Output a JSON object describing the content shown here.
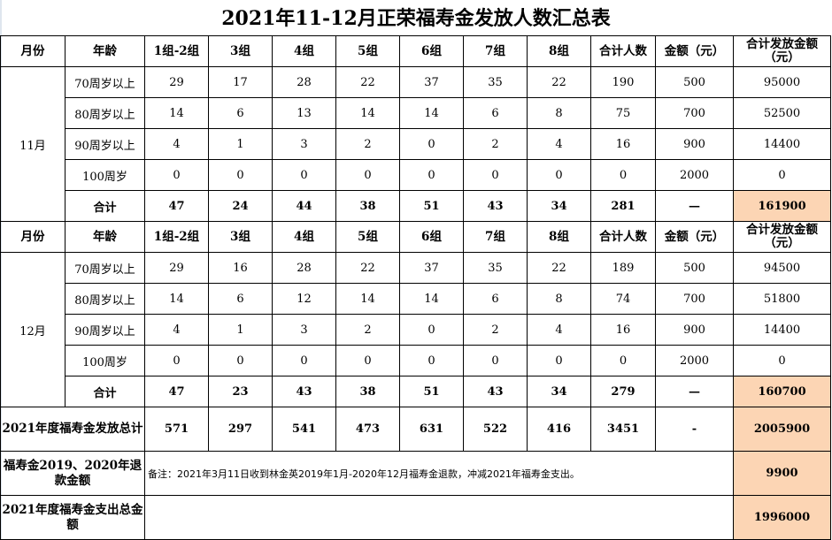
{
  "title": "2021年11-12月正荣福寿金发放人数汇总表",
  "headers": [
    "月份",
    "年龄",
    "1组-2组",
    "3组",
    "4组",
    "5组",
    "6组",
    "7组",
    "8组",
    "合计人数",
    "金额（元）",
    "合计发放金额（元）"
  ],
  "months": [
    {
      "month": "11月",
      "rows": [
        {
          "age": "70周岁以上",
          "values": [
            "29",
            "17",
            "28",
            "22",
            "37",
            "35",
            "22",
            "190",
            "500",
            "95000"
          ]
        },
        {
          "age": "80周岁以上",
          "values": [
            "14",
            "6",
            "13",
            "14",
            "14",
            "6",
            "8",
            "75",
            "700",
            "52500"
          ]
        },
        {
          "age": "90周岁以上",
          "values": [
            "4",
            "1",
            "3",
            "2",
            "0",
            "2",
            "4",
            "16",
            "900",
            "14400"
          ]
        },
        {
          "age": "100周岁",
          "values": [
            "0",
            "0",
            "0",
            "0",
            "0",
            "0",
            "0",
            "0",
            "2000",
            "0"
          ]
        }
      ],
      "total": {
        "label": "合计",
        "values": [
          "47",
          "24",
          "44",
          "38",
          "51",
          "43",
          "34",
          "281",
          "—",
          "161900"
        ]
      }
    },
    {
      "month": "12月",
      "rows": [
        {
          "age": "70周岁以上",
          "values": [
            "29",
            "16",
            "28",
            "22",
            "37",
            "35",
            "22",
            "189",
            "500",
            "94500"
          ]
        },
        {
          "age": "80周岁以上",
          "values": [
            "14",
            "6",
            "12",
            "14",
            "14",
            "6",
            "8",
            "74",
            "700",
            "51800"
          ]
        },
        {
          "age": "90周岁以上",
          "values": [
            "4",
            "1",
            "3",
            "2",
            "0",
            "2",
            "4",
            "16",
            "900",
            "14400"
          ]
        },
        {
          "age": "100周岁",
          "values": [
            "0",
            "0",
            "0",
            "0",
            "0",
            "0",
            "0",
            "0",
            "2000",
            "0"
          ]
        }
      ],
      "total": {
        "label": "合计",
        "values": [
          "47",
          "23",
          "43",
          "38",
          "51",
          "43",
          "34",
          "279",
          "—",
          "160700"
        ]
      }
    }
  ],
  "annual_total": {
    "label": "2021年度福寿金发放总计",
    "values": [
      "571",
      "297",
      "541",
      "473",
      "631",
      "522",
      "416",
      "3451",
      "-",
      "2005900"
    ]
  },
  "refund": {
    "label": "福寿金2019、2020年退款金额",
    "note": "备注：2021年3月11日收到林金英2019年1月-2020年12月福寿金退款，冲减2021年福寿金支出。",
    "amount": "9900"
  },
  "expense_total": {
    "label": "2021年度福寿金支出总金额",
    "amount": "1996000"
  },
  "colors": {
    "highlight": "#fcd5b4",
    "border": "#000000"
  }
}
